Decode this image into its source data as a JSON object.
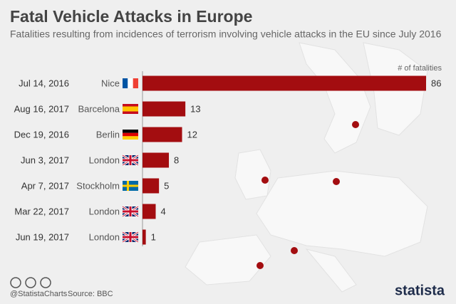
{
  "chart_data": {
    "type": "bar",
    "orientation": "horizontal",
    "title": "Fatal Vehicle Attacks in Europe",
    "subtitle": "Fatalities resulting from incidences of terrorism involving vehicle attacks in the EU since July 2016",
    "value_axis_label": "# of fatalities",
    "dates": [
      "Jul 14, 2016",
      "Aug 16, 2017",
      "Dec 19, 2016",
      "Jun 3, 2017",
      "Apr 7, 2017",
      "Mar 22, 2017",
      "Jun 19, 2017"
    ],
    "categories": [
      "Nice",
      "Barcelona",
      "Berlin",
      "London",
      "Stockholm",
      "London",
      "London"
    ],
    "values": [
      86,
      13,
      12,
      8,
      5,
      4,
      1
    ],
    "color": "#a30d10",
    "handle": "@StatistaCharts",
    "source": "Source: BBC",
    "brand": "statista"
  }
}
